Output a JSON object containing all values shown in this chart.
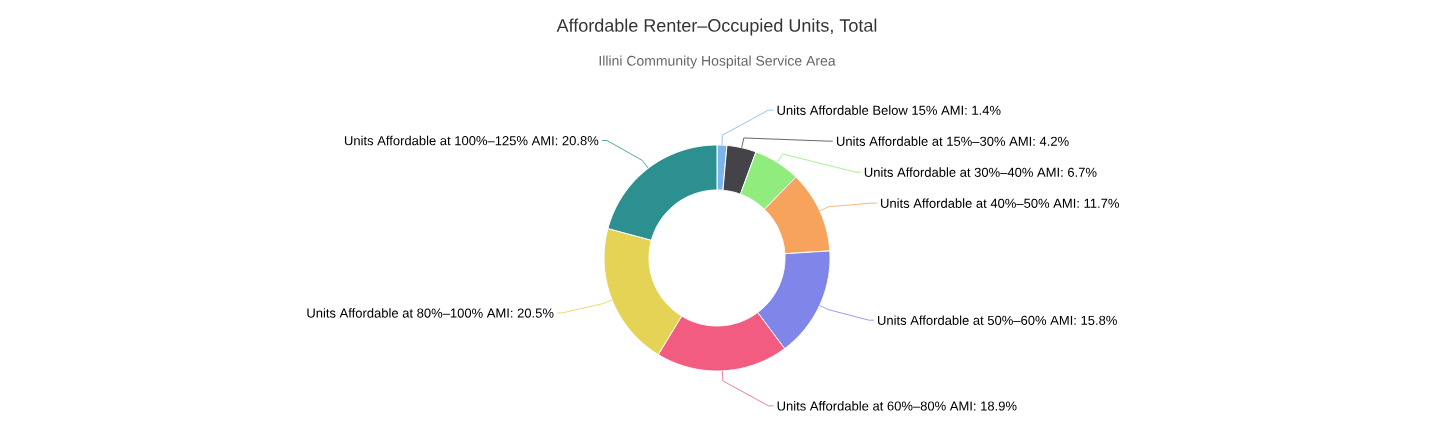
{
  "chart_data": {
    "type": "donut",
    "title": "Affordable Renter–Occupied Units, Total",
    "subtitle": "Illini Community Hospital Service Area",
    "categories": [
      null,
      null,
      null,
      null,
      null,
      null,
      null,
      null
    ],
    "values": [
      1.4,
      4.2,
      6.7,
      11.7,
      15.8,
      18.9,
      20.5,
      20.8
    ],
    "colors": [
      "#7cb5ec",
      "#434348",
      "#90ed7d",
      "#f7a35c",
      "#8085e9",
      "#f15c80",
      "#e4d354",
      "#2b908f"
    ],
    "value_labels": [
      "Units Affordable Below 15% AMI: 1.4%",
      "Units Affordable at 15%–30% AMI: 4.2%",
      "Units Affordable at 30%–40% AMI: 6.7%",
      "Units Affordable at 40%–50% AMI: 11.7%",
      "Units Affordable at 50%–60% AMI: 15.8%",
      "Units Affordable at 60%–80% AMI: 18.9%",
      "Units Affordable at 80%–100% AMI: 20.5%",
      "Units Affordable at 100%–125% AMI: 20.8%"
    ]
  }
}
